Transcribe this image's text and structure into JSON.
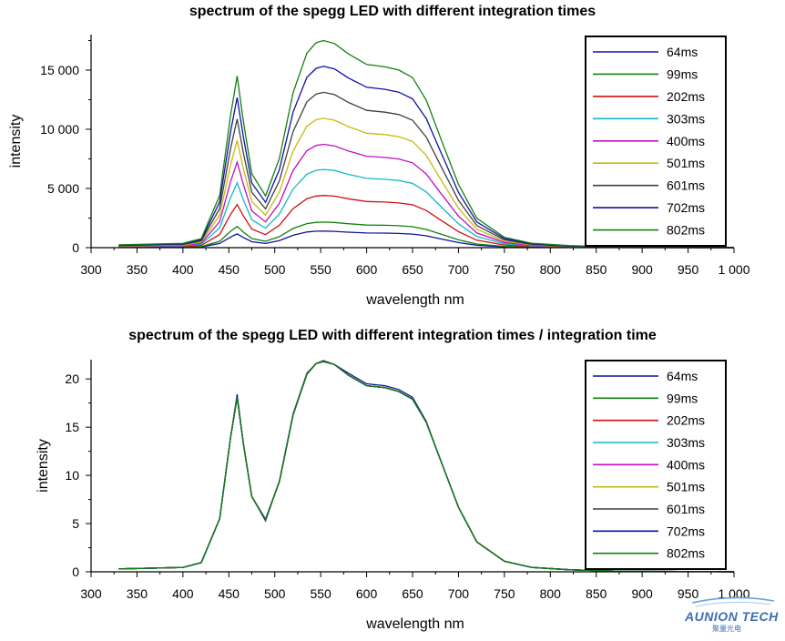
{
  "chart_data": [
    {
      "type": "line",
      "title": "spectrum of the spegg LED with different integration times",
      "xlabel": "wavelength  nm",
      "ylabel": "intensity",
      "xlim": [
        300,
        1000
      ],
      "ylim": [
        0,
        18000
      ],
      "xticks": [
        300,
        350,
        400,
        450,
        500,
        550,
        600,
        650,
        700,
        750,
        800,
        850,
        900,
        950,
        1000
      ],
      "xtick_labels": [
        "300",
        "350",
        "400",
        "450",
        "500",
        "550",
        "600",
        "650",
        "700",
        "750",
        "800",
        "850",
        "900",
        "950",
        "1 000"
      ],
      "yticks": [
        0,
        5000,
        10000,
        15000
      ],
      "ytick_labels": [
        "0",
        "5 000",
        "10 000",
        "15 000"
      ],
      "legend_position": "top-right",
      "x": [
        330,
        400,
        420,
        440,
        452,
        459,
        466,
        475,
        490,
        505,
        520,
        535,
        545,
        553,
        565,
        580,
        600,
        620,
        635,
        650,
        665,
        680,
        700,
        720,
        750,
        780,
        820,
        870,
        1000
      ],
      "series": [
        {
          "name": "64ms",
          "color": "#1010a0",
          "values": [
            20,
            30,
            60,
            350,
            900,
            1160,
            850,
            500,
            350,
            600,
            1050,
            1320,
            1390,
            1400,
            1380,
            1310,
            1240,
            1230,
            1200,
            1150,
            1000,
            750,
            430,
            200,
            70,
            30,
            15,
            5,
            0
          ]
        },
        {
          "name": "99ms",
          "color": "#108010",
          "values": [
            30,
            45,
            95,
            540,
            1390,
            1790,
            1310,
            770,
            540,
            930,
            1620,
            2030,
            2140,
            2160,
            2130,
            2020,
            1910,
            1890,
            1850,
            1770,
            1540,
            1160,
            660,
            310,
            110,
            45,
            20,
            8,
            0
          ]
        },
        {
          "name": "202ms",
          "color": "#d01010",
          "values": [
            60,
            90,
            190,
            1110,
            2830,
            3650,
            2670,
            1570,
            1100,
            1890,
            3300,
            4140,
            4360,
            4410,
            4350,
            4130,
            3900,
            3850,
            3780,
            3620,
            3140,
            2360,
            1350,
            630,
            220,
            90,
            45,
            15,
            0
          ]
        },
        {
          "name": "303ms",
          "color": "#10b8c8",
          "values": [
            90,
            135,
            285,
            1660,
            4240,
            5480,
            4000,
            2360,
            1650,
            2840,
            4950,
            6210,
            6540,
            6610,
            6520,
            6190,
            5850,
            5780,
            5670,
            5430,
            4710,
            3540,
            2020,
            940,
            330,
            140,
            65,
            25,
            0
          ]
        },
        {
          "name": "400ms",
          "color": "#c010c0",
          "values": [
            120,
            180,
            380,
            2190,
            5600,
            7230,
            5290,
            3110,
            2180,
            3750,
            6530,
            8200,
            8630,
            8730,
            8600,
            8170,
            7720,
            7620,
            7490,
            7170,
            6220,
            4670,
            2670,
            1240,
            440,
            180,
            85,
            30,
            0
          ]
        },
        {
          "name": "501ms",
          "color": "#c8b810",
          "values": [
            150,
            225,
            475,
            2750,
            7010,
            9060,
            6620,
            3900,
            2730,
            4700,
            8180,
            10270,
            10810,
            10930,
            10770,
            10230,
            9670,
            9550,
            9380,
            8980,
            7790,
            5850,
            3340,
            1550,
            550,
            230,
            110,
            40,
            0
          ]
        },
        {
          "name": "601ms",
          "color": "#404040",
          "values": [
            180,
            270,
            570,
            3300,
            8410,
            10870,
            7950,
            4670,
            3280,
            5640,
            9820,
            12320,
            12970,
            13120,
            12930,
            12280,
            11600,
            11450,
            11250,
            10770,
            9340,
            7020,
            4010,
            1860,
            660,
            270,
            130,
            45,
            0
          ]
        },
        {
          "name": "702ms",
          "color": "#1010a0",
          "values": [
            210,
            315,
            665,
            3850,
            9830,
            12690,
            9280,
            5460,
            3830,
            6590,
            11470,
            14390,
            15150,
            15320,
            15100,
            14340,
            13550,
            13380,
            13140,
            12580,
            10910,
            8200,
            4680,
            2170,
            770,
            320,
            150,
            55,
            0
          ]
        },
        {
          "name": "802ms",
          "color": "#108010",
          "values": [
            240,
            360,
            760,
            4400,
            11230,
            14500,
            10600,
            6240,
            4380,
            7530,
            13100,
            16440,
            17310,
            17500,
            17250,
            16380,
            15480,
            15280,
            15010,
            14370,
            12460,
            9360,
            5350,
            2480,
            880,
            370,
            175,
            60,
            0
          ]
        }
      ]
    },
    {
      "type": "line",
      "title": "spectrum of the spegg LED with different integration times / integration time",
      "xlabel": "wavelength  nm",
      "ylabel": "intensity",
      "xlim": [
        300,
        1000
      ],
      "ylim": [
        0,
        22
      ],
      "xticks": [
        300,
        350,
        400,
        450,
        500,
        550,
        600,
        650,
        700,
        750,
        800,
        850,
        900,
        950,
        1000
      ],
      "xtick_labels": [
        "300",
        "350",
        "400",
        "450",
        "500",
        "550",
        "600",
        "650",
        "700",
        "750",
        "800",
        "850",
        "900",
        "950",
        "1 000"
      ],
      "yticks": [
        0,
        5,
        10,
        15,
        20
      ],
      "ytick_labels": [
        "0",
        "5",
        "10",
        "15",
        "20"
      ],
      "legend_position": "top-right",
      "x": [
        330,
        400,
        420,
        440,
        452,
        459,
        466,
        475,
        490,
        505,
        520,
        535,
        545,
        553,
        565,
        580,
        600,
        620,
        635,
        650,
        665,
        680,
        700,
        720,
        750,
        780,
        820,
        870,
        1000
      ],
      "series": [
        {
          "name": "64ms",
          "color": "#1010a0",
          "values": [
            0.3,
            0.45,
            0.95,
            5.5,
            14.0,
            18.4,
            13.2,
            7.8,
            5.3,
            9.4,
            16.4,
            20.6,
            21.6,
            21.9,
            21.5,
            20.6,
            19.5,
            19.3,
            18.9,
            18.1,
            15.6,
            11.7,
            6.7,
            3.1,
            1.1,
            0.45,
            0.22,
            0.08,
            0
          ]
        },
        {
          "name": "99ms",
          "color": "#108010",
          "values": [
            0.3,
            0.45,
            0.95,
            5.5,
            14.0,
            18.1,
            13.2,
            7.8,
            5.45,
            9.4,
            16.3,
            20.5,
            21.6,
            21.8,
            21.5,
            20.4,
            19.3,
            19.1,
            18.7,
            17.9,
            15.5,
            11.7,
            6.7,
            3.1,
            1.1,
            0.45,
            0.22,
            0.08,
            0
          ]
        },
        {
          "name": "202ms",
          "color": "#d01010",
          "values": [
            0.3,
            0.45,
            0.95,
            5.5,
            14.0,
            18.1,
            13.2,
            7.8,
            5.45,
            9.35,
            16.3,
            20.5,
            21.6,
            21.8,
            21.5,
            20.4,
            19.3,
            19.1,
            18.7,
            17.9,
            15.5,
            11.7,
            6.7,
            3.1,
            1.1,
            0.45,
            0.22,
            0.08,
            0
          ]
        },
        {
          "name": "303ms",
          "color": "#10b8c8",
          "values": [
            0.3,
            0.45,
            0.95,
            5.5,
            14.0,
            18.1,
            13.2,
            7.8,
            5.45,
            9.35,
            16.3,
            20.5,
            21.6,
            21.8,
            21.5,
            20.4,
            19.3,
            19.1,
            18.7,
            17.9,
            15.5,
            11.7,
            6.7,
            3.1,
            1.1,
            0.45,
            0.22,
            0.08,
            0
          ]
        },
        {
          "name": "400ms",
          "color": "#c010c0",
          "values": [
            0.3,
            0.45,
            0.95,
            5.5,
            14.0,
            18.1,
            13.2,
            7.8,
            5.45,
            9.35,
            16.3,
            20.5,
            21.6,
            21.8,
            21.5,
            20.4,
            19.3,
            19.1,
            18.7,
            17.9,
            15.5,
            11.7,
            6.7,
            3.1,
            1.1,
            0.45,
            0.22,
            0.08,
            0
          ]
        },
        {
          "name": "501ms",
          "color": "#c8b810",
          "values": [
            0.3,
            0.45,
            0.95,
            5.5,
            14.0,
            18.1,
            13.2,
            7.8,
            5.45,
            9.35,
            16.3,
            20.5,
            21.6,
            21.8,
            21.5,
            20.4,
            19.3,
            19.1,
            18.7,
            17.9,
            15.5,
            11.7,
            6.7,
            3.1,
            1.1,
            0.45,
            0.22,
            0.08,
            0
          ]
        },
        {
          "name": "601ms",
          "color": "#404040",
          "values": [
            0.3,
            0.45,
            0.95,
            5.5,
            14.0,
            18.1,
            13.2,
            7.8,
            5.45,
            9.35,
            16.3,
            20.5,
            21.6,
            21.8,
            21.5,
            20.4,
            19.3,
            19.1,
            18.7,
            17.9,
            15.5,
            11.7,
            6.7,
            3.1,
            1.1,
            0.45,
            0.22,
            0.08,
            0
          ]
        },
        {
          "name": "702ms",
          "color": "#1010a0",
          "values": [
            0.3,
            0.45,
            0.95,
            5.5,
            14.0,
            18.1,
            13.2,
            7.8,
            5.45,
            9.35,
            16.3,
            20.5,
            21.6,
            21.8,
            21.5,
            20.4,
            19.3,
            19.1,
            18.7,
            17.9,
            15.5,
            11.7,
            6.7,
            3.1,
            1.1,
            0.45,
            0.22,
            0.08,
            0
          ]
        },
        {
          "name": "802ms",
          "color": "#108010",
          "values": [
            0.3,
            0.45,
            0.95,
            5.5,
            14.0,
            18.1,
            13.2,
            7.8,
            5.45,
            9.35,
            16.3,
            20.5,
            21.6,
            21.8,
            21.5,
            20.4,
            19.3,
            19.1,
            18.7,
            17.9,
            15.5,
            11.7,
            6.7,
            3.1,
            1.1,
            0.45,
            0.22,
            0.08,
            0
          ]
        }
      ]
    }
  ],
  "logo": {
    "brand": "AUNION TECH",
    "subtitle": "聚量光电"
  }
}
